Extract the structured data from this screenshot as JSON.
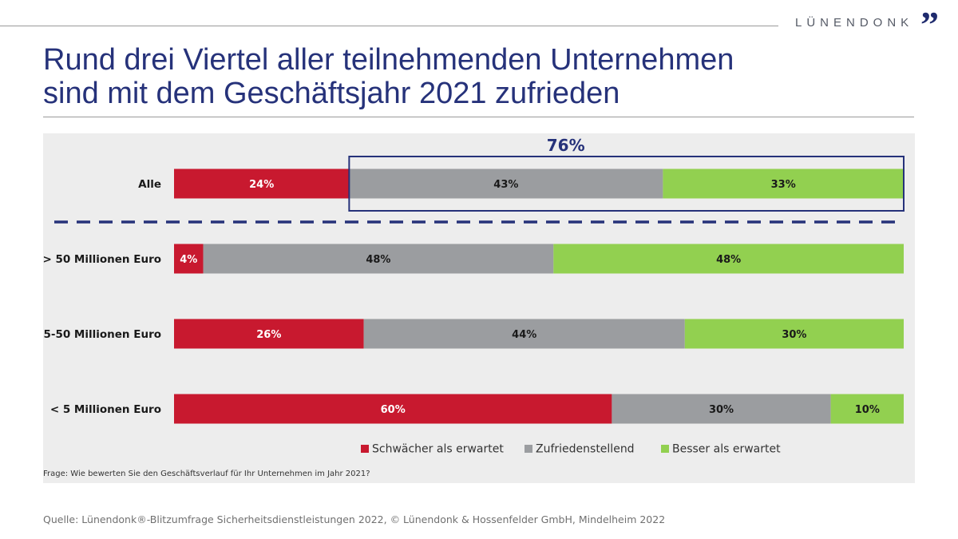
{
  "header": {
    "logo_text": "LÜNENDONK",
    "logo_mark": "”",
    "title_line1": "Rund drei Viertel aller teilnehmenden Unternehmen",
    "title_line2": "sind mit dem Geschäftsjahr 2021 zufrieden"
  },
  "chart_data": {
    "type": "bar",
    "orientation": "horizontal",
    "stacked": true,
    "value_unit": "%",
    "categories": [
      "Alle",
      "> 50 Millionen Euro",
      "5-50 Millionen Euro",
      "< 5 Millionen Euro"
    ],
    "series": [
      {
        "name": "Schwächer als erwartet",
        "color": "#c8192f",
        "label_color": "#ffffff",
        "values": [
          24,
          4,
          26,
          60
        ]
      },
      {
        "name": "Zufriedenstellend",
        "color": "#9b9da0",
        "label_color": "#1a1a1a",
        "values": [
          43,
          48,
          44,
          30
        ]
      },
      {
        "name": "Besser als erwartet",
        "color": "#92d050",
        "label_color": "#1a1a1a",
        "values": [
          33,
          48,
          30,
          10
        ]
      }
    ],
    "xlim": [
      0,
      100
    ],
    "highlight": {
      "label": "76%",
      "category": "Alle",
      "series": [
        "Zufriedenstellend",
        "Besser als erwartet"
      ],
      "color": "#26327a"
    },
    "separator_after_category": "Alle",
    "legend_position": "bottom-center",
    "question": "Frage: Wie bewerten Sie den Geschäftsverlauf für Ihr Unternehmen im Jahr 2021?"
  },
  "footer": {
    "source": "Quelle: Lünendonk®-Blitzumfrage Sicherheitsdienstleistungen 2022, © Lünendonk & Hossenfelder GmbH, Mindelheim 2022"
  }
}
